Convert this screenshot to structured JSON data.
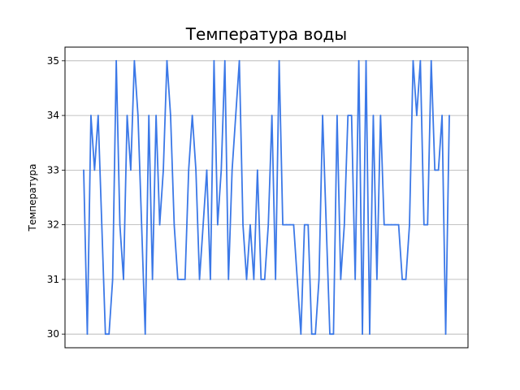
{
  "chart_data": {
    "type": "line",
    "title": "Температура воды",
    "xlabel": "",
    "ylabel": "Температура",
    "ylim": [
      29.75,
      35.25
    ],
    "yticks": [
      30,
      31,
      32,
      33,
      34,
      35
    ],
    "xticks_shown": false,
    "grid": {
      "y": true,
      "x": false
    },
    "line_color": "#3b78e7",
    "grid_color": "#b0b0b0",
    "series": [
      {
        "values": [
          33,
          30,
          34,
          33,
          34,
          32,
          30,
          30,
          31,
          35,
          32,
          31,
          34,
          33,
          35,
          34,
          32,
          30,
          34,
          31,
          34,
          32,
          33,
          35,
          34,
          32,
          31,
          31,
          31,
          33,
          34,
          33,
          31,
          32,
          33,
          31,
          35,
          32,
          33,
          35,
          31,
          33,
          34,
          35,
          32,
          31,
          32,
          31,
          33,
          31,
          31,
          32,
          34,
          31,
          35,
          32,
          32,
          32,
          32,
          31,
          30,
          32,
          32,
          30,
          30,
          31,
          34,
          32,
          30,
          30,
          34,
          31,
          32,
          34,
          34,
          31,
          35,
          30,
          35,
          30,
          34,
          31,
          34,
          32,
          32,
          32,
          32,
          32,
          31,
          31,
          32,
          35,
          34,
          35,
          32,
          32,
          35,
          33,
          33,
          34,
          30,
          34
        ]
      }
    ]
  }
}
